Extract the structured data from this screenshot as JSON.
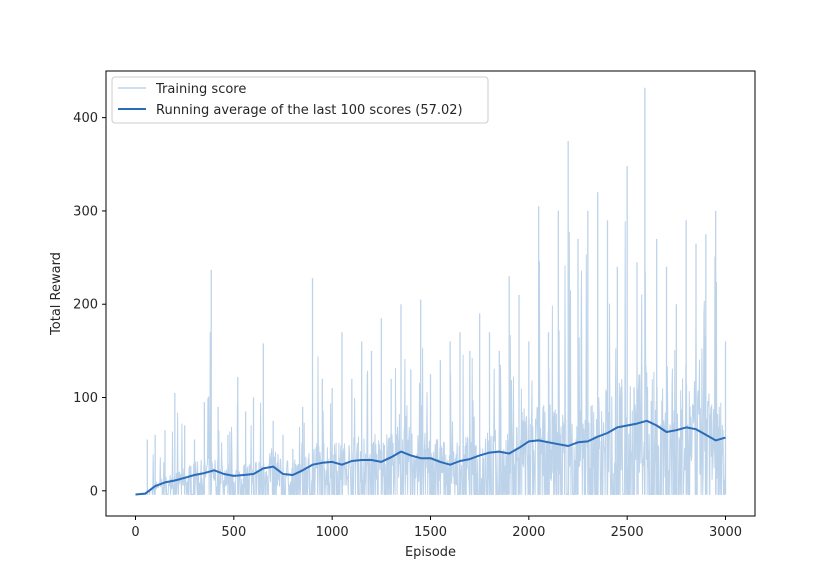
{
  "chart_data": {
    "type": "line",
    "xlabel": "Episode",
    "ylabel": "Total Reward",
    "xlim": [
      -150,
      3150
    ],
    "ylim": [
      -27,
      450
    ],
    "x_ticks": [
      0,
      500,
      1000,
      1500,
      2000,
      2500,
      3000
    ],
    "y_ticks": [
      0,
      100,
      200,
      300,
      400
    ],
    "legend_position": "top-left",
    "colors": {
      "training": "#bdd3ea",
      "average": "#2b6cb8"
    },
    "series": [
      {
        "name": "Training score",
        "x": [
          0,
          30,
          60,
          100,
          150,
          200,
          250,
          300,
          350,
          385,
          420,
          470,
          520,
          560,
          600,
          650,
          700,
          750,
          800,
          850,
          900,
          950,
          1000,
          1050,
          1100,
          1150,
          1200,
          1250,
          1300,
          1350,
          1400,
          1450,
          1500,
          1550,
          1600,
          1650,
          1700,
          1750,
          1800,
          1850,
          1900,
          1950,
          2000,
          2050,
          2100,
          2150,
          2200,
          2250,
          2300,
          2350,
          2400,
          2450,
          2500,
          2550,
          2590,
          2650,
          2700,
          2750,
          2800,
          2850,
          2900,
          2950,
          3000
        ],
        "y": [
          -4,
          -4,
          55,
          60,
          65,
          105,
          70,
          55,
          95,
          237,
          90,
          60,
          122,
          85,
          100,
          158,
          75,
          60,
          45,
          90,
          228,
          120,
          110,
          170,
          120,
          160,
          150,
          185,
          120,
          200,
          130,
          205,
          125,
          140,
          160,
          170,
          150,
          190,
          170,
          150,
          230,
          210,
          160,
          305,
          170,
          300,
          375,
          270,
          300,
          320,
          290,
          240,
          348,
          245,
          432,
          270,
          240,
          200,
          290,
          265,
          275,
          300,
          160
        ]
      },
      {
        "name": "Running average of the last 100 scores (57.02)",
        "x": [
          0,
          50,
          100,
          150,
          200,
          250,
          300,
          350,
          400,
          450,
          500,
          550,
          600,
          650,
          700,
          750,
          800,
          850,
          900,
          950,
          1000,
          1050,
          1100,
          1150,
          1200,
          1250,
          1300,
          1350,
          1400,
          1450,
          1500,
          1550,
          1600,
          1650,
          1700,
          1750,
          1800,
          1850,
          1900,
          1950,
          2000,
          2050,
          2100,
          2150,
          2200,
          2250,
          2300,
          2350,
          2400,
          2450,
          2500,
          2550,
          2600,
          2650,
          2700,
          2750,
          2800,
          2850,
          2900,
          2950,
          3000
        ],
        "y": [
          -4,
          -3,
          5,
          9,
          11,
          14,
          17,
          19,
          22,
          18,
          16,
          17,
          18,
          24,
          26,
          18,
          17,
          22,
          28,
          30,
          31,
          28,
          32,
          33,
          33,
          31,
          36,
          42,
          38,
          35,
          35,
          31,
          28,
          32,
          34,
          38,
          41,
          42,
          40,
          46,
          53,
          54,
          52,
          50,
          48,
          52,
          53,
          58,
          62,
          68,
          70,
          72,
          75,
          70,
          63,
          65,
          68,
          66,
          60,
          54,
          57
        ]
      }
    ]
  }
}
